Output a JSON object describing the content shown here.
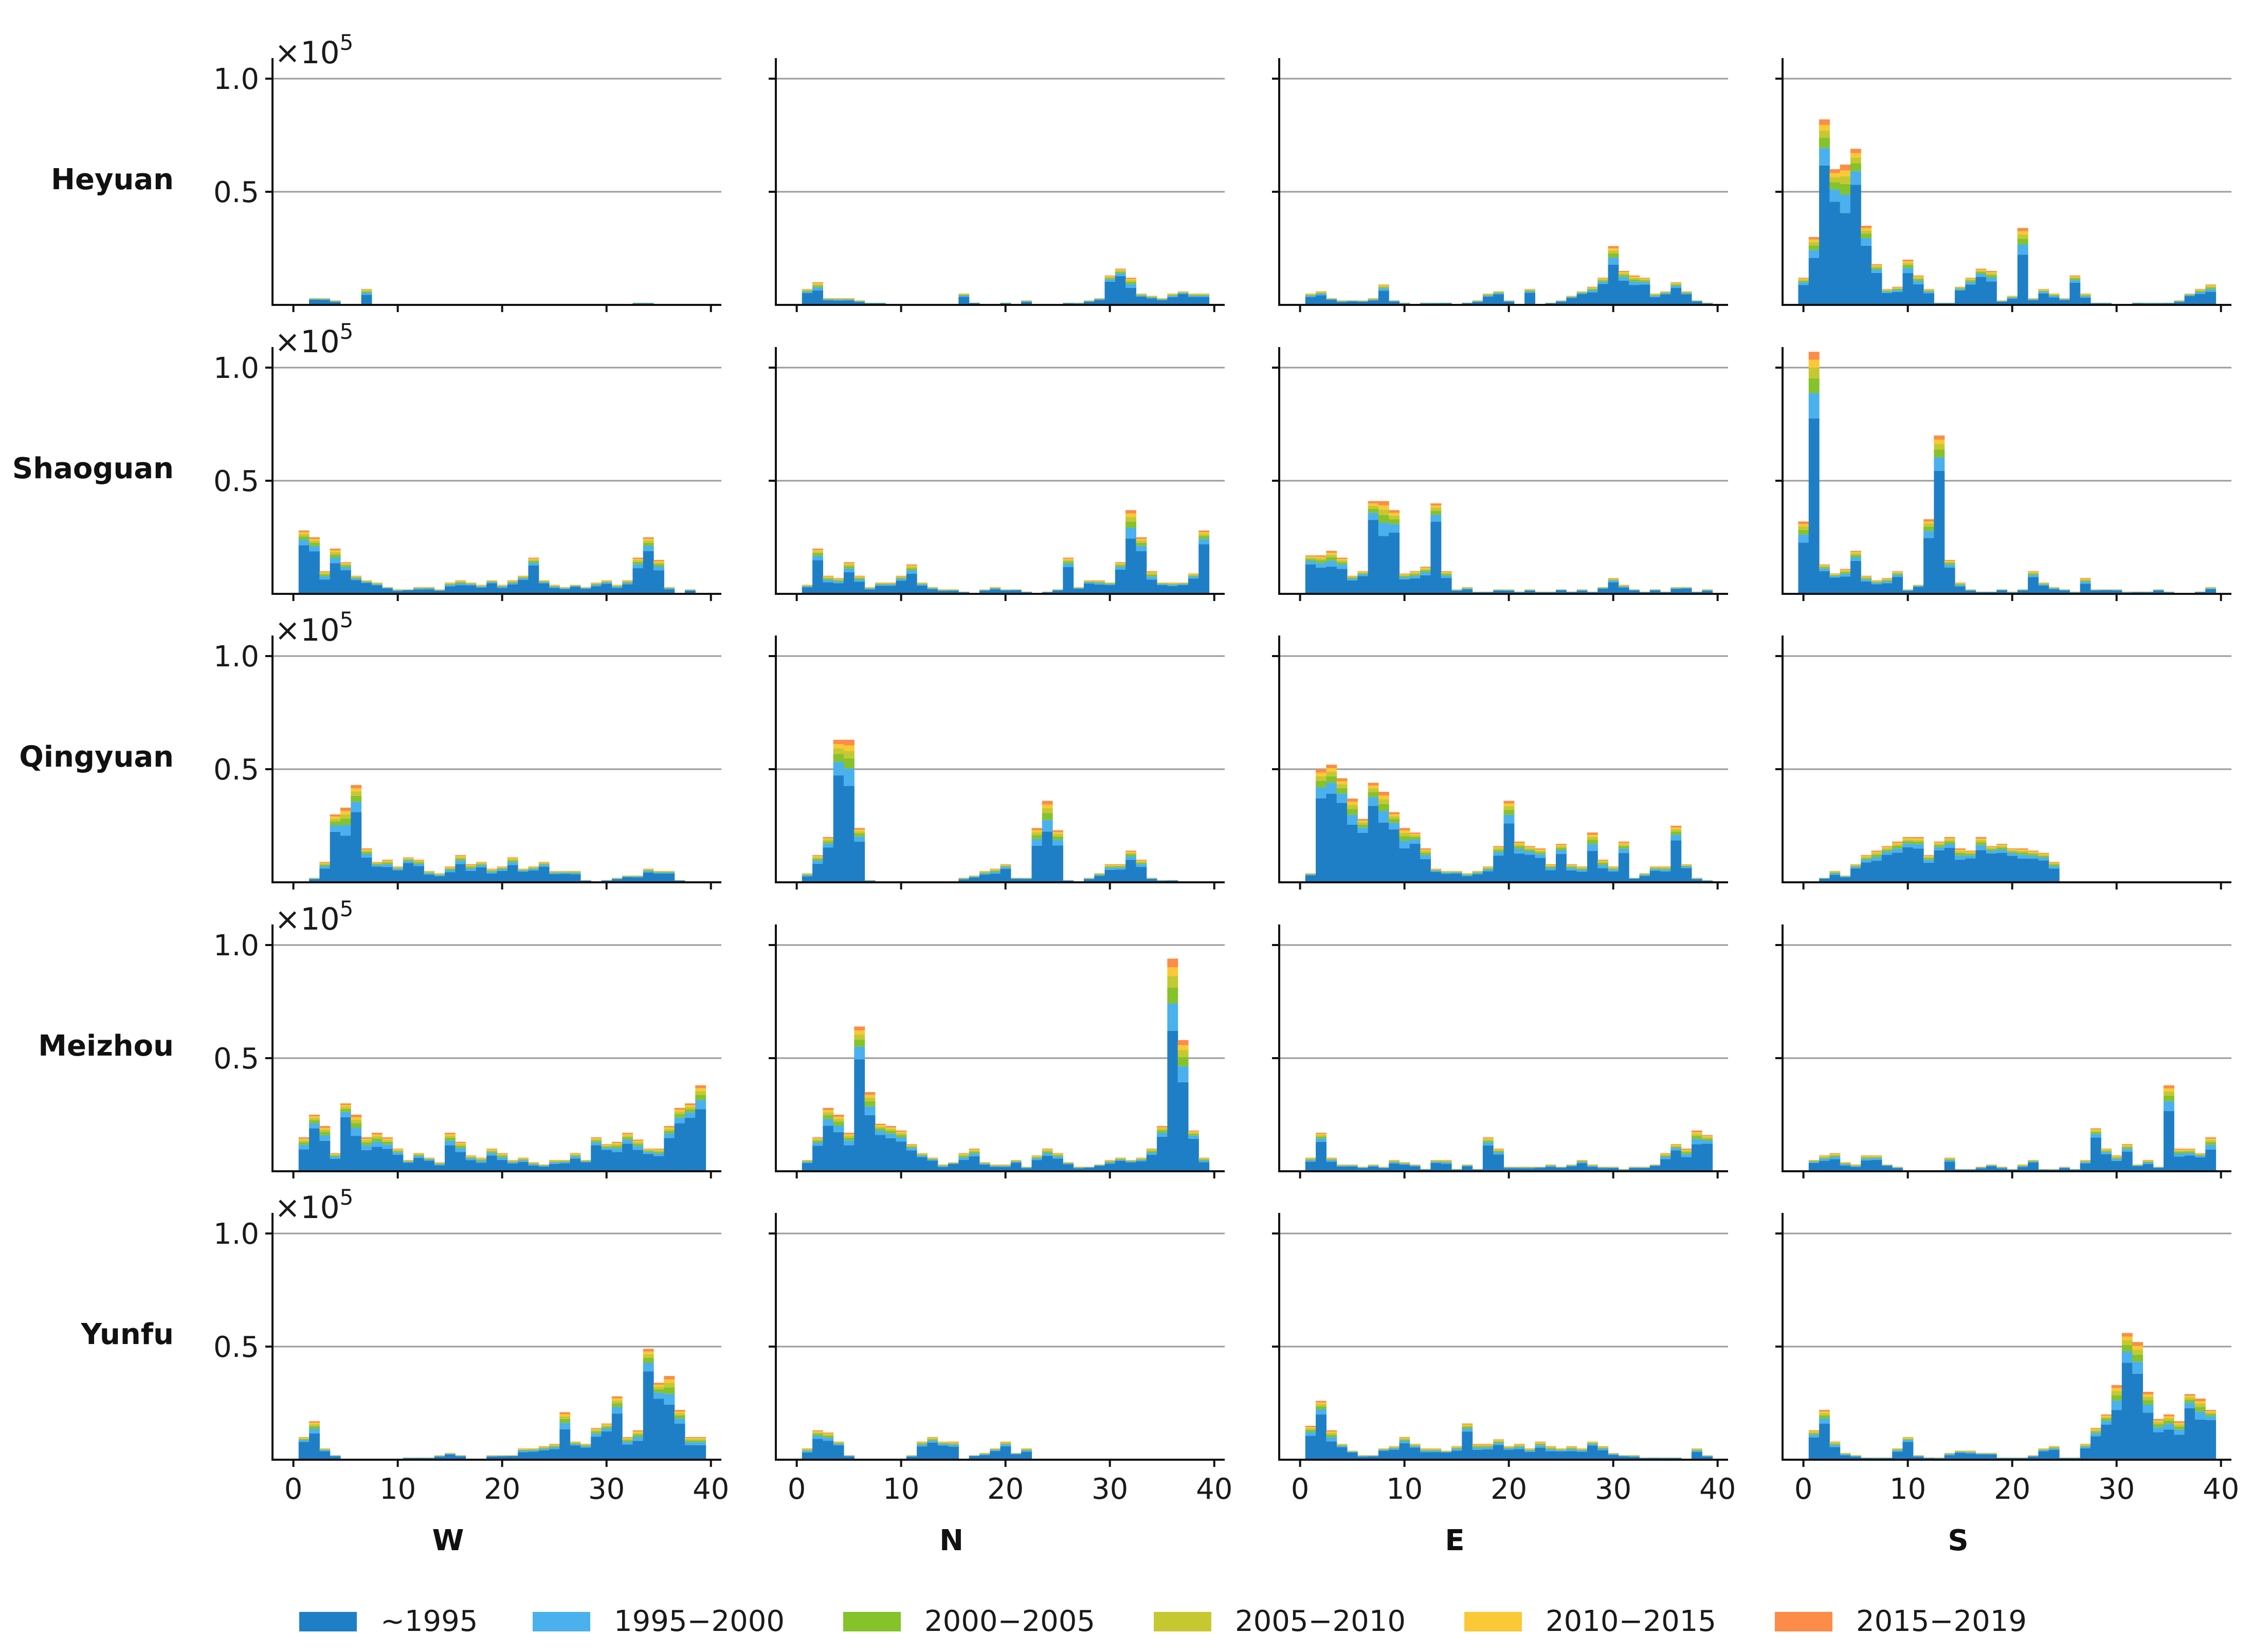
{
  "chart_data": {
    "type": "bar",
    "stacked": true,
    "rows": [
      "Heyuan",
      "Shaoguan",
      "Qingyuan",
      "Meizhou",
      "Yunfu"
    ],
    "columns": [
      "W",
      "N",
      "E",
      "S"
    ],
    "x_ticks": [
      0,
      10,
      20,
      30,
      40
    ],
    "x_tick_labels": [
      "0",
      "10",
      "20",
      "30",
      "40"
    ],
    "y_ticks": [
      0.5,
      1.0
    ],
    "y_tick_labels": [
      "0.5",
      "1.0"
    ],
    "y_multiplier": {
      "base": "×10",
      "exp": "5"
    },
    "xlim": [
      -2,
      41
    ],
    "ylim": [
      0,
      1.08
    ],
    "n_bins": 40,
    "grid": "horizontal",
    "legend_position": "bottom",
    "series": [
      {
        "name": "~1995",
        "color": "#1f7fc6"
      },
      {
        "name": "1995−2000",
        "color": "#4ab1ee"
      },
      {
        "name": "2000−2005",
        "color": "#86c22a"
      },
      {
        "name": "2005−2010",
        "color": "#c6c832"
      },
      {
        "name": "2010−2015",
        "color": "#fbc935"
      },
      {
        "name": "2015−2019",
        "color": "#fc8c47"
      }
    ],
    "panels": [
      [
        {
          "row": "Heyuan",
          "col": "W",
          "totals": [
            0,
            0,
            0.03,
            0.03,
            0.02,
            0,
            0,
            0.07,
            0,
            0,
            0,
            0,
            0,
            0,
            0,
            0,
            0,
            0,
            0,
            0,
            0,
            0,
            0,
            0,
            0,
            0,
            0,
            0,
            0,
            0,
            0,
            0,
            0,
            0.01,
            0.01,
            0,
            0,
            0,
            0,
            0
          ]
        },
        {
          "row": "Heyuan",
          "col": "N",
          "totals": [
            0,
            0.07,
            0.1,
            0.03,
            0.03,
            0.03,
            0.02,
            0.01,
            0.01,
            0,
            0,
            0,
            0,
            0,
            0,
            0,
            0.05,
            0.01,
            0,
            0,
            0.01,
            0,
            0.02,
            0,
            0,
            0,
            0.01,
            0.01,
            0.02,
            0.03,
            0.13,
            0.16,
            0.12,
            0.05,
            0.04,
            0.03,
            0.05,
            0.06,
            0.05,
            0.05
          ]
        },
        {
          "row": "Heyuan",
          "col": "E",
          "totals": [
            0,
            0.05,
            0.06,
            0.03,
            0.02,
            0.02,
            0.02,
            0.03,
            0.09,
            0.02,
            0.01,
            0,
            0.01,
            0.01,
            0.01,
            0,
            0.01,
            0.02,
            0.05,
            0.06,
            0.02,
            0,
            0.07,
            0,
            0.01,
            0.02,
            0.04,
            0.06,
            0.08,
            0.12,
            0.26,
            0.15,
            0.13,
            0.12,
            0.05,
            0.06,
            0.1,
            0.06,
            0.02,
            0.01
          ]
        },
        {
          "row": "Heyuan",
          "col": "S",
          "totals": [
            0.12,
            0.3,
            0.82,
            0.6,
            0.62,
            0.69,
            0.35,
            0.18,
            0.07,
            0.08,
            0.2,
            0.13,
            0.07,
            0.01,
            0.01,
            0.08,
            0.12,
            0.16,
            0.15,
            0.02,
            0.04,
            0.34,
            0.03,
            0.07,
            0.05,
            0.03,
            0.13,
            0.05,
            0.01,
            0.01,
            0,
            0,
            0.01,
            0.01,
            0.01,
            0.01,
            0.02,
            0.05,
            0.07,
            0.09
          ]
        }
      ],
      [
        {
          "row": "Shaoguan",
          "col": "W",
          "totals": [
            0,
            0.28,
            0.25,
            0.1,
            0.2,
            0.14,
            0.08,
            0.06,
            0.05,
            0.03,
            0.02,
            0.02,
            0.03,
            0.03,
            0.02,
            0.05,
            0.06,
            0.05,
            0.04,
            0.06,
            0.04,
            0.06,
            0.08,
            0.16,
            0.06,
            0.04,
            0.03,
            0.04,
            0.03,
            0.05,
            0.06,
            0.04,
            0.06,
            0.16,
            0.25,
            0.15,
            0.03,
            0,
            0.02,
            0
          ]
        },
        {
          "row": "Shaoguan",
          "col": "N",
          "totals": [
            0,
            0.04,
            0.2,
            0.08,
            0.07,
            0.14,
            0.08,
            0.03,
            0.05,
            0.05,
            0.08,
            0.13,
            0.05,
            0.03,
            0.02,
            0.02,
            0.01,
            0,
            0.02,
            0.03,
            0.02,
            0.02,
            0.01,
            0,
            0.01,
            0.02,
            0.16,
            0.03,
            0.06,
            0.06,
            0.05,
            0.14,
            0.37,
            0.25,
            0.1,
            0.05,
            0.05,
            0.05,
            0.09,
            0.28
          ]
        },
        {
          "row": "Shaoguan",
          "col": "E",
          "totals": [
            0,
            0.17,
            0.17,
            0.19,
            0.16,
            0.08,
            0.1,
            0.41,
            0.41,
            0.37,
            0.09,
            0.1,
            0.12,
            0.4,
            0.1,
            0.02,
            0.03,
            0.01,
            0.01,
            0.02,
            0.02,
            0.01,
            0.02,
            0.01,
            0.01,
            0.02,
            0.01,
            0.02,
            0.01,
            0.03,
            0.07,
            0.04,
            0.02,
            0.01,
            0.02,
            0.01,
            0.03,
            0.03,
            0.01,
            0.02
          ]
        },
        {
          "row": "Shaoguan",
          "col": "S",
          "totals": [
            0.32,
            1.07,
            0.13,
            0.09,
            0.11,
            0.19,
            0.08,
            0.06,
            0.07,
            0.1,
            0.02,
            0.04,
            0.33,
            0.7,
            0.15,
            0.05,
            0.02,
            0.01,
            0.01,
            0.02,
            0.01,
            0.02,
            0.1,
            0.05,
            0.03,
            0.02,
            0.01,
            0.07,
            0.02,
            0.02,
            0.02,
            0.01,
            0.01,
            0.01,
            0.02,
            0.01,
            0,
            0,
            0.01,
            0.03
          ]
        }
      ],
      [
        {
          "row": "Qingyuan",
          "col": "W",
          "totals": [
            0,
            0,
            0.02,
            0.09,
            0.3,
            0.33,
            0.43,
            0.15,
            0.09,
            0.1,
            0.07,
            0.11,
            0.1,
            0.05,
            0.04,
            0.07,
            0.12,
            0.08,
            0.09,
            0.06,
            0.07,
            0.11,
            0.06,
            0.07,
            0.09,
            0.05,
            0.05,
            0.05,
            0.01,
            0,
            0.01,
            0.02,
            0.03,
            0.03,
            0.06,
            0.05,
            0.05,
            0.01,
            0,
            0
          ]
        },
        {
          "row": "Qingyuan",
          "col": "N",
          "totals": [
            0,
            0.04,
            0.12,
            0.2,
            0.63,
            0.63,
            0.24,
            0.01,
            0,
            0,
            0,
            0,
            0,
            0,
            0,
            0,
            0.02,
            0.03,
            0.05,
            0.06,
            0.08,
            0.02,
            0.02,
            0.24,
            0.36,
            0.23,
            0.01,
            0,
            0.02,
            0.04,
            0.08,
            0.08,
            0.14,
            0.1,
            0.02,
            0.01,
            0.01,
            0,
            0,
            0
          ]
        },
        {
          "row": "Qingyuan",
          "col": "E",
          "totals": [
            0,
            0.04,
            0.5,
            0.52,
            0.46,
            0.37,
            0.28,
            0.44,
            0.4,
            0.31,
            0.24,
            0.22,
            0.15,
            0.06,
            0.05,
            0.05,
            0.04,
            0.05,
            0.07,
            0.16,
            0.36,
            0.18,
            0.16,
            0.15,
            0.08,
            0.17,
            0.08,
            0.07,
            0.22,
            0.1,
            0.07,
            0.18,
            0.02,
            0.04,
            0.07,
            0.07,
            0.25,
            0.08,
            0.02,
            0.01
          ]
        },
        {
          "row": "Qingyuan",
          "col": "S",
          "totals": [
            0,
            0,
            0.02,
            0.05,
            0.03,
            0.08,
            0.12,
            0.14,
            0.16,
            0.18,
            0.2,
            0.2,
            0.12,
            0.18,
            0.2,
            0.15,
            0.14,
            0.2,
            0.16,
            0.17,
            0.15,
            0.15,
            0.14,
            0.13,
            0.09,
            0,
            0,
            0,
            0,
            0,
            0,
            0,
            0,
            0,
            0,
            0,
            0,
            0,
            0,
            0
          ]
        }
      ],
      [
        {
          "row": "Meizhou",
          "col": "W",
          "totals": [
            0,
            0.15,
            0.25,
            0.2,
            0.08,
            0.3,
            0.25,
            0.15,
            0.17,
            0.15,
            0.1,
            0.05,
            0.08,
            0.06,
            0.04,
            0.17,
            0.13,
            0.07,
            0.06,
            0.1,
            0.08,
            0.05,
            0.06,
            0.04,
            0.03,
            0.05,
            0.05,
            0.08,
            0.05,
            0.15,
            0.12,
            0.13,
            0.17,
            0.14,
            0.1,
            0.1,
            0.2,
            0.28,
            0.3,
            0.38
          ]
        },
        {
          "row": "Meizhou",
          "col": "N",
          "totals": [
            0,
            0.05,
            0.15,
            0.28,
            0.25,
            0.17,
            0.64,
            0.35,
            0.21,
            0.2,
            0.18,
            0.12,
            0.08,
            0.06,
            0.03,
            0.04,
            0.08,
            0.1,
            0.04,
            0.03,
            0.03,
            0.05,
            0.02,
            0.07,
            0.1,
            0.08,
            0.04,
            0.02,
            0.02,
            0.03,
            0.05,
            0.06,
            0.05,
            0.06,
            0.1,
            0.2,
            0.94,
            0.58,
            0.18,
            0.06
          ]
        },
        {
          "row": "Meizhou",
          "col": "E",
          "totals": [
            0,
            0.06,
            0.17,
            0.06,
            0.03,
            0.03,
            0.02,
            0.03,
            0.02,
            0.05,
            0.04,
            0.03,
            0.01,
            0.05,
            0.05,
            0.01,
            0.03,
            0.01,
            0.15,
            0.1,
            0.02,
            0.02,
            0.02,
            0.02,
            0.03,
            0.02,
            0.03,
            0.05,
            0.03,
            0.02,
            0.02,
            0.01,
            0.02,
            0.02,
            0.03,
            0.08,
            0.12,
            0.1,
            0.18,
            0.16
          ]
        },
        {
          "row": "Meizhou",
          "col": "S",
          "totals": [
            0,
            0.05,
            0.07,
            0.08,
            0.04,
            0.03,
            0.07,
            0.07,
            0.03,
            0.02,
            0,
            0,
            0,
            0,
            0.06,
            0.01,
            0.01,
            0.02,
            0.03,
            0.02,
            0.01,
            0.03,
            0.05,
            0.01,
            0.01,
            0.02,
            0.01,
            0.05,
            0.19,
            0.1,
            0.07,
            0.12,
            0.03,
            0.05,
            0.02,
            0.38,
            0.1,
            0.1,
            0.08,
            0.15
          ]
        }
      ],
      [
        {
          "row": "Yunfu",
          "col": "W",
          "totals": [
            0,
            0.1,
            0.17,
            0.05,
            0.02,
            0,
            0,
            0,
            0,
            0,
            0,
            0.01,
            0.01,
            0.01,
            0.02,
            0.03,
            0.02,
            0,
            0,
            0.02,
            0.02,
            0.02,
            0.05,
            0.05,
            0.06,
            0.07,
            0.21,
            0.08,
            0.07,
            0.14,
            0.16,
            0.28,
            0.1,
            0.13,
            0.49,
            0.34,
            0.37,
            0.22,
            0.1,
            0.1
          ]
        },
        {
          "row": "Yunfu",
          "col": "N",
          "totals": [
            0,
            0.05,
            0.13,
            0.12,
            0.08,
            0.02,
            0,
            0,
            0,
            0,
            0,
            0.02,
            0.08,
            0.1,
            0.08,
            0.08,
            0,
            0.02,
            0.03,
            0.05,
            0.08,
            0.03,
            0.05,
            0,
            0,
            0,
            0,
            0,
            0,
            0,
            0,
            0,
            0,
            0,
            0,
            0,
            0,
            0,
            0,
            0
          ]
        },
        {
          "row": "Yunfu",
          "col": "E",
          "totals": [
            0,
            0.15,
            0.26,
            0.13,
            0.07,
            0.04,
            0.02,
            0.02,
            0.05,
            0.06,
            0.1,
            0.07,
            0.05,
            0.05,
            0.04,
            0.06,
            0.16,
            0.07,
            0.07,
            0.09,
            0.06,
            0.07,
            0.05,
            0.08,
            0.06,
            0.05,
            0.06,
            0.05,
            0.08,
            0.06,
            0.03,
            0.02,
            0.02,
            0.01,
            0.01,
            0.01,
            0.01,
            0,
            0.05,
            0.02
          ]
        },
        {
          "row": "Yunfu",
          "col": "S",
          "totals": [
            0,
            0.13,
            0.22,
            0.08,
            0.03,
            0.02,
            0.01,
            0.01,
            0.01,
            0.05,
            0.1,
            0.02,
            0.01,
            0.01,
            0.03,
            0.04,
            0.04,
            0.03,
            0.03,
            0.01,
            0.01,
            0.01,
            0.02,
            0.05,
            0.06,
            0.01,
            0.01,
            0.07,
            0.14,
            0.2,
            0.33,
            0.56,
            0.52,
            0.3,
            0.18,
            0.2,
            0.17,
            0.29,
            0.27,
            0.22
          ]
        }
      ]
    ]
  }
}
